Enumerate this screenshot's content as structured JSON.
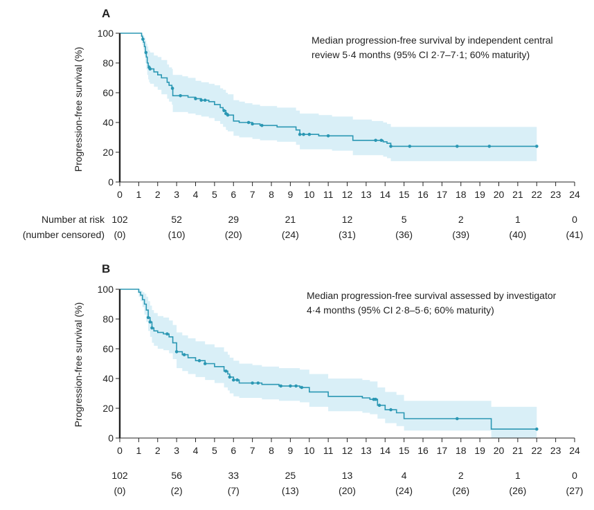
{
  "chart_data": [
    {
      "type": "step",
      "panel_label": "A",
      "ylabel": "Progression-free survival (%)",
      "xlim": [
        0,
        24
      ],
      "ylim": [
        0,
        100
      ],
      "x_ticks": [
        0,
        1,
        2,
        3,
        4,
        5,
        6,
        7,
        8,
        9,
        10,
        11,
        12,
        13,
        14,
        15,
        16,
        17,
        18,
        19,
        20,
        21,
        22,
        23,
        24
      ],
      "y_ticks": [
        0,
        20,
        40,
        60,
        80,
        100
      ],
      "annotation": [
        "Median progression-free survival by independent central",
        "review 5·4 months (95% CI 2·7–7·1; 60% maturity)"
      ],
      "series": [
        {
          "name": "PFS",
          "x": [
            0,
            1.1,
            1.15,
            1.2,
            1.25,
            1.3,
            1.35,
            1.4,
            1.45,
            1.5,
            1.55,
            1.6,
            1.8,
            2.0,
            2.2,
            2.5,
            2.6,
            2.75,
            2.8,
            3.3,
            3.6,
            4.0,
            4.3,
            4.7,
            5.0,
            5.3,
            5.45,
            5.6,
            5.7,
            6.0,
            6.3,
            6.6,
            7.0,
            7.4,
            8.3,
            9.3,
            9.5,
            10.5,
            11.2,
            12.3,
            13.3,
            13.9,
            14.1,
            14.3,
            22
          ],
          "y": [
            100,
            100,
            98,
            96,
            94,
            91,
            87,
            84,
            80,
            78,
            77,
            76,
            74,
            72,
            70,
            67,
            65,
            63,
            58,
            58,
            57,
            56,
            55,
            54,
            52,
            50,
            48,
            46,
            45,
            41,
            40,
            40,
            39,
            38,
            37,
            35,
            32,
            31,
            31,
            28,
            28,
            27,
            26,
            24,
            24
          ],
          "ci_upper": [
            100,
            100,
            100,
            99,
            98,
            97,
            95,
            93,
            91,
            89,
            88,
            87,
            85,
            84,
            82,
            79,
            77,
            76,
            72,
            71,
            70,
            68,
            67,
            66,
            65,
            63,
            62,
            60,
            59,
            55,
            54,
            53,
            52,
            51,
            50,
            48,
            46,
            45,
            44,
            42,
            41,
            40,
            39,
            37,
            37
          ],
          "ci_lower": [
            100,
            100,
            95,
            92,
            89,
            85,
            80,
            76,
            72,
            69,
            67,
            66,
            64,
            62,
            59,
            56,
            54,
            52,
            47,
            47,
            46,
            45,
            44,
            43,
            41,
            39,
            37,
            35,
            34,
            31,
            30,
            30,
            29,
            28,
            27,
            25,
            22,
            22,
            21,
            18,
            18,
            17,
            16,
            14,
            14
          ],
          "censor_x": [
            1.22,
            1.38,
            1.55,
            1.6,
            2.78,
            3.2,
            4.0,
            4.3,
            4.5,
            5.5,
            5.6,
            5.7,
            6.8,
            7.0,
            7.5,
            9.5,
            9.7,
            10.0,
            11.0,
            13.5,
            13.8,
            14.3,
            15.3,
            17.8,
            19.5,
            22
          ],
          "color": "#2a97b3",
          "ci_color": "#d9eff7"
        }
      ],
      "risk_table": {
        "row_label_1": "Number at risk",
        "row_label_2": "(number censored)",
        "times": [
          0,
          3,
          6,
          9,
          12,
          15,
          18,
          21,
          24
        ],
        "at_risk": [
          "102",
          "52",
          "29",
          "21",
          "12",
          "5",
          "2",
          "1",
          "0"
        ],
        "censored": [
          "(0)",
          "(10)",
          "(20)",
          "(24)",
          "(31)",
          "(36)",
          "(39)",
          "(40)",
          "(41)"
        ]
      }
    },
    {
      "type": "step",
      "panel_label": "B",
      "ylabel": "Progression-free survival (%)",
      "xlim": [
        0,
        24
      ],
      "ylim": [
        0,
        100
      ],
      "x_ticks": [
        0,
        1,
        2,
        3,
        4,
        5,
        6,
        7,
        8,
        9,
        10,
        11,
        12,
        13,
        14,
        15,
        16,
        17,
        18,
        19,
        20,
        21,
        22,
        23,
        24
      ],
      "y_ticks": [
        0,
        20,
        40,
        60,
        80,
        100
      ],
      "annotation": [
        "Median progression-free survival assessed by investigator",
        "4·4 months (95% CI 2·8–5·6; 60% maturity)"
      ],
      "series": [
        {
          "name": "PFS",
          "x": [
            0,
            0.9,
            1.0,
            1.1,
            1.2,
            1.3,
            1.4,
            1.5,
            1.6,
            1.7,
            1.8,
            2.0,
            2.3,
            2.6,
            2.8,
            3.0,
            3.3,
            3.6,
            4.0,
            4.5,
            5.0,
            5.5,
            5.7,
            5.8,
            6.0,
            6.3,
            7.0,
            7.5,
            8.4,
            9.0,
            9.5,
            10.0,
            11.0,
            12.8,
            13.2,
            13.6,
            14.0,
            14.6,
            15.0,
            19.6,
            22
          ],
          "y": [
            100,
            100,
            98,
            96,
            93,
            90,
            86,
            81,
            78,
            74,
            72,
            71,
            70,
            68,
            64,
            58,
            56,
            54,
            52,
            50,
            48,
            45,
            43,
            41,
            39,
            37,
            37,
            36,
            35,
            35,
            34,
            31,
            28,
            27,
            26,
            22,
            19,
            17,
            13,
            6,
            6
          ],
          "ci_upper": [
            100,
            100,
            100,
            99,
            98,
            97,
            95,
            92,
            89,
            86,
            84,
            82,
            81,
            79,
            76,
            71,
            69,
            67,
            65,
            63,
            61,
            58,
            56,
            54,
            52,
            50,
            49,
            48,
            47,
            47,
            46,
            43,
            40,
            39,
            38,
            34,
            31,
            29,
            25,
            21,
            21
          ],
          "ci_lower": [
            100,
            100,
            95,
            92,
            88,
            83,
            78,
            72,
            68,
            64,
            62,
            60,
            59,
            57,
            53,
            47,
            45,
            43,
            41,
            39,
            37,
            34,
            32,
            30,
            28,
            27,
            27,
            26,
            25,
            25,
            24,
            21,
            18,
            17,
            16,
            13,
            10,
            8,
            5,
            0,
            0
          ],
          "censor_x": [
            1.5,
            1.6,
            1.7,
            2.5,
            3.0,
            3.4,
            4.2,
            4.5,
            5.6,
            5.8,
            6.0,
            6.2,
            7.0,
            7.3,
            8.5,
            9.0,
            9.3,
            9.6,
            13.4,
            13.5,
            13.7,
            14.3,
            17.8,
            22
          ],
          "color": "#2a97b3",
          "ci_color": "#d9eff7"
        }
      ],
      "risk_table": {
        "row_label_1": "",
        "row_label_2": "",
        "times": [
          0,
          3,
          6,
          9,
          12,
          15,
          18,
          21,
          24
        ],
        "at_risk": [
          "102",
          "56",
          "33",
          "25",
          "13",
          "4",
          "2",
          "1",
          "0"
        ],
        "censored": [
          "(0)",
          "(2)",
          "(7)",
          "(13)",
          "(20)",
          "(24)",
          "(26)",
          "(26)",
          "(27)"
        ]
      }
    }
  ]
}
